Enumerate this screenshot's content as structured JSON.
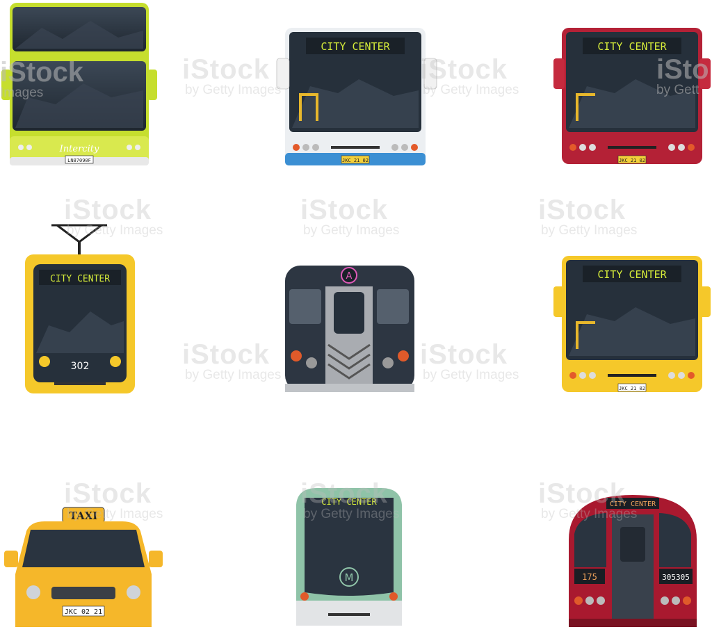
{
  "watermark": {
    "brand": "iStock",
    "byline": "by Getty Images"
  },
  "edge_marks": {
    "left_brand": "iStock",
    "left_small": "Images",
    "right_brand": "iSto",
    "right_small": "by Gett"
  },
  "icons": {
    "double_decker": {
      "brand": "Intercity",
      "plate": "LN87090F"
    },
    "blue_bus": {
      "destination": "CITY CENTER",
      "plate": "JKC 21 02"
    },
    "red_bus": {
      "destination": "CITY CENTER",
      "plate": "JKC 21 02"
    },
    "tram": {
      "destination": "CITY CENTER",
      "number": "302"
    },
    "subway": {
      "line": "A"
    },
    "yellow_bus": {
      "destination": "CITY CENTER",
      "plate": "JKC 21 02"
    },
    "taxi": {
      "sign": "TAXI",
      "plate": "JKC 02 21"
    },
    "metro": {
      "destination": "CITY CENTER",
      "logo": "M"
    },
    "underground": {
      "destination": "CITY CENTER",
      "left_number": "175",
      "right_number": "305305"
    }
  },
  "colors": {
    "lime": "#c6de2e",
    "blue": "#3b8fd3",
    "red": "#b42136",
    "yellow": "#f5c82a",
    "taxi": "#f5b72a",
    "teal": "#8fc3a8",
    "subway_grey": "#a9acb1",
    "underground_red": "#a9192f",
    "led_text": "#d6ec3a",
    "window_dark": "#27313c"
  }
}
